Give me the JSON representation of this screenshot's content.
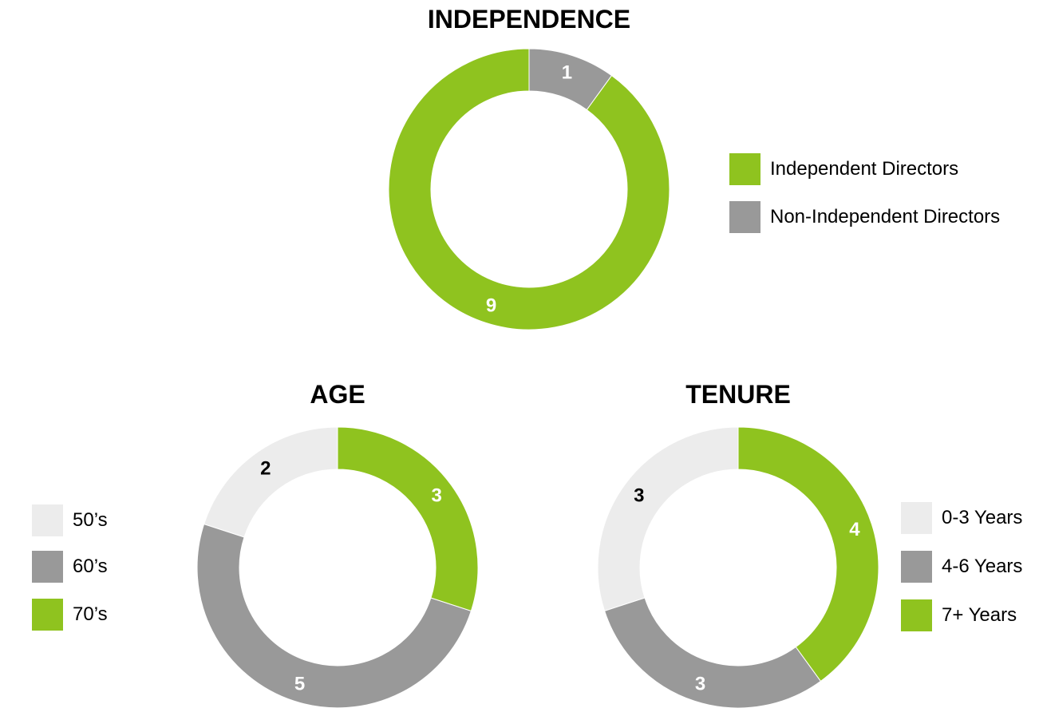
{
  "chart_data": [
    {
      "type": "pie",
      "title": "INDEPENDENCE",
      "labels": [
        "Independent Directors",
        "Non-Independent Directors"
      ],
      "values": [
        9,
        1
      ],
      "colors": [
        "#8fc31f",
        "#999999"
      ],
      "label_colors": [
        "#ffffff",
        "#ffffff"
      ],
      "legend": "right"
    },
    {
      "type": "pie",
      "title": "AGE",
      "labels": [
        "50’s",
        "60’s",
        "70’s"
      ],
      "values": [
        2,
        5,
        3
      ],
      "colors": [
        "#ececec",
        "#999999",
        "#8fc31f"
      ],
      "label_colors": [
        "#000000",
        "#ffffff",
        "#ffffff"
      ],
      "legend": "left"
    },
    {
      "type": "pie",
      "title": "TENURE",
      "labels": [
        "0-3 Years",
        "4-6 Years",
        "7+ Years"
      ],
      "values": [
        3,
        3,
        4
      ],
      "colors": [
        "#ececec",
        "#999999",
        "#8fc31f"
      ],
      "label_colors": [
        "#000000",
        "#ffffff",
        "#ffffff"
      ],
      "legend": "right"
    }
  ]
}
